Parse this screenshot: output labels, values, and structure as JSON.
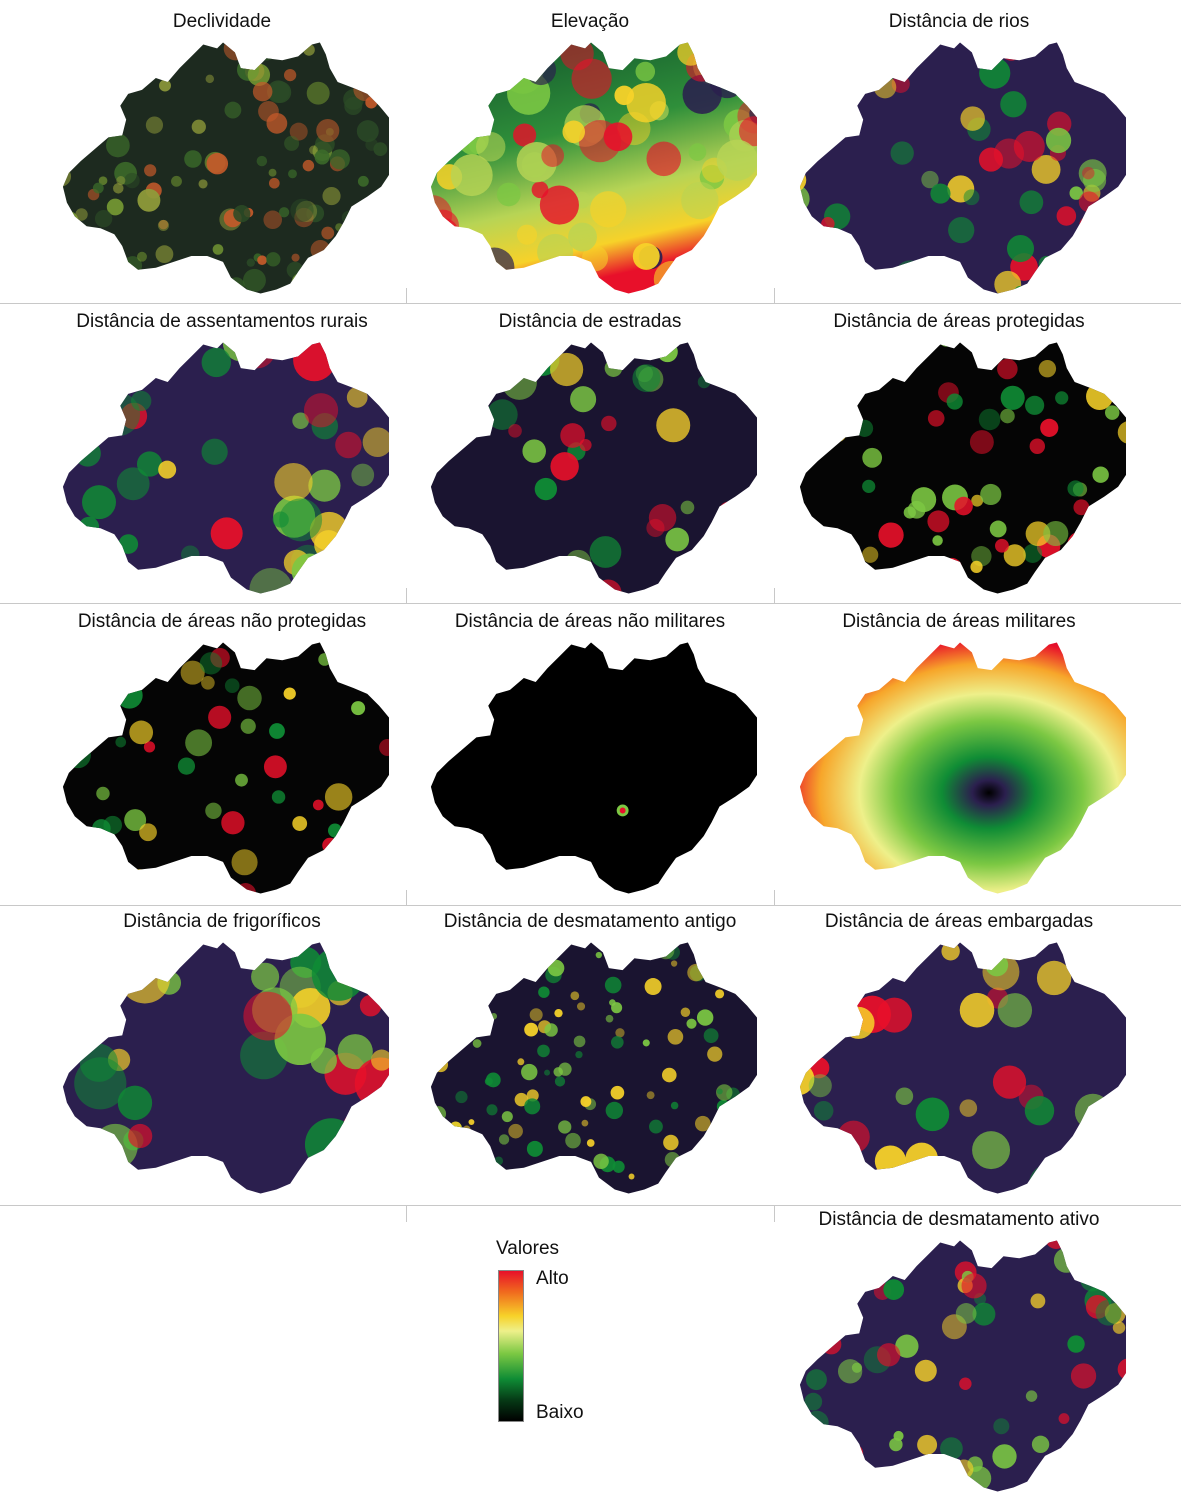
{
  "panels": [
    {
      "title": "Declividade",
      "style": "slope"
    },
    {
      "title": "Elevação",
      "style": "elevation"
    },
    {
      "title": "Distância de rios",
      "style": "rivers"
    },
    {
      "title": "Distância de assentamentos rurais",
      "style": "settlements"
    },
    {
      "title": "Distância de estradas",
      "style": "roads"
    },
    {
      "title": "Distância de áreas protegidas",
      "style": "protected"
    },
    {
      "title": "Distância de áreas não protegidas",
      "style": "nonprotected"
    },
    {
      "title": "Distância de áreas não militares",
      "style": "nonmilitary"
    },
    {
      "title": "Distância de áreas militares",
      "style": "military"
    },
    {
      "title": "Distância de frigoríficos",
      "style": "slaughter"
    },
    {
      "title": "Distância de desmatamento antigo",
      "style": "olddeforest"
    },
    {
      "title": "Distância de áreas embargadas",
      "style": "embargoed"
    },
    {
      "title": "Distância de desmatamento ativo",
      "style": "activedeforest"
    }
  ],
  "legend": {
    "title": "Valores",
    "high_label": "Alto",
    "low_label": "Baixo"
  },
  "colors": {
    "high": "#e8102a",
    "orange": "#f06a1e",
    "yellow": "#f7d229",
    "green": "#0f8c35",
    "dark_green": "#063a16",
    "purple": "#2b1f4e",
    "low": "#000000"
  }
}
